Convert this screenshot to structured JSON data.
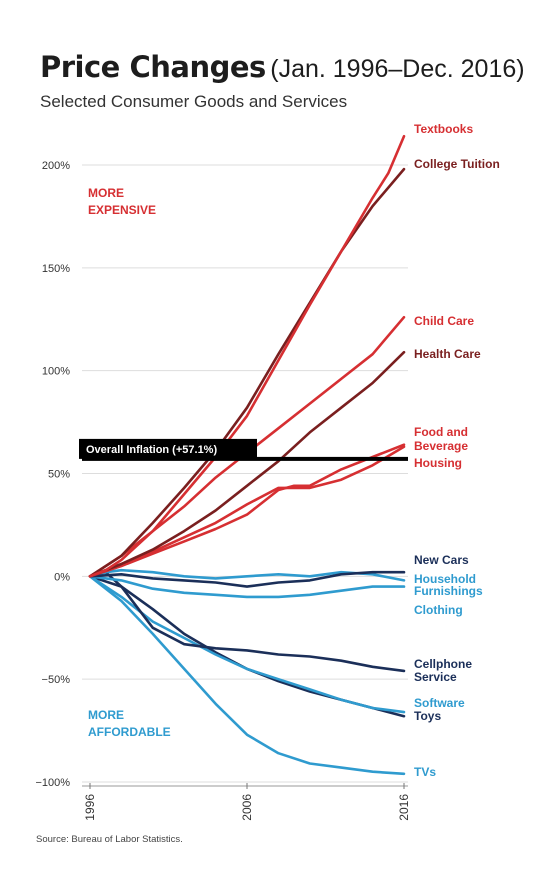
{
  "header": {
    "title": "Price Changes",
    "title_dates": "(Jan. 1996–Dec. 2016)",
    "subtitle": "Selected Consumer Goods and Services"
  },
  "footer": {
    "source": "Source: Bureau of Labor Statistics."
  },
  "colors": {
    "red": "#d62f32",
    "dark_red": "#7a1f1f",
    "blue": "#2f9bcf",
    "navy": "#1b2f59"
  },
  "chart_data": {
    "type": "line",
    "title": "Price Changes",
    "subtitle": "Selected Consumer Goods and Services",
    "xlabel": "",
    "ylabel": "",
    "xlim": [
      1996,
      2016
    ],
    "ylim": [
      -100,
      215
    ],
    "x_ticks": [
      {
        "value": 1996,
        "label": "1996"
      },
      {
        "value": 2006,
        "label": "2006"
      },
      {
        "value": 2016,
        "label": "2016"
      }
    ],
    "y_ticks": [
      {
        "value": 200,
        "label": "200%"
      },
      {
        "value": 150,
        "label": "150%"
      },
      {
        "value": 100,
        "label": "100%"
      },
      {
        "value": 50,
        "label": "50%"
      },
      {
        "value": 0,
        "label": "0%"
      },
      {
        "value": -50,
        "label": "−50%"
      },
      {
        "value": -100,
        "label": "−100%"
      }
    ],
    "grid": "horizontal",
    "legend": "direct labels at right end of lines",
    "annotations": [
      {
        "text": "MORE",
        "color": "red"
      },
      {
        "text": "EXPENSIVE",
        "color": "red"
      },
      {
        "text": "MORE",
        "color": "blue"
      },
      {
        "text": "AFFORDABLE",
        "color": "blue"
      }
    ],
    "reference": {
      "label": "Overall Inflation (+57.1%)",
      "value": 57.1
    },
    "series": [
      {
        "name": "Textbooks",
        "color": "red",
        "x": [
          1996,
          1997,
          1998,
          2000,
          2002,
          2004,
          2006,
          2008,
          2010,
          2012,
          2014,
          2015,
          2016
        ],
        "values": [
          0,
          3,
          8,
          22,
          40,
          58,
          78,
          105,
          132,
          158,
          184,
          196,
          214
        ]
      },
      {
        "name": "College Tuition",
        "color": "dark_red",
        "x": [
          1996,
          1998,
          2000,
          2002,
          2004,
          2006,
          2008,
          2010,
          2012,
          2014,
          2016
        ],
        "values": [
          0,
          10,
          26,
          43,
          61,
          82,
          108,
          133,
          158,
          180,
          198
        ]
      },
      {
        "name": "Child Care",
        "color": "red",
        "x": [
          1996,
          1998,
          2000,
          2002,
          2004,
          2006,
          2008,
          2010,
          2012,
          2014,
          2016
        ],
        "values": [
          0,
          10,
          22,
          34,
          48,
          60,
          72,
          84,
          96,
          108,
          126
        ]
      },
      {
        "name": "Health Care",
        "color": "dark_red",
        "x": [
          1996,
          1998,
          2000,
          2002,
          2004,
          2006,
          2008,
          2010,
          2012,
          2014,
          2016
        ],
        "values": [
          0,
          6,
          13,
          22,
          32,
          44,
          56,
          70,
          82,
          94,
          109
        ]
      },
      {
        "name": "Food and Beverage",
        "color": "red",
        "x": [
          1996,
          1998,
          2000,
          2002,
          2004,
          2006,
          2008,
          2009,
          2010,
          2012,
          2014,
          2016
        ],
        "values": [
          0,
          5,
          11,
          17,
          23,
          30,
          42,
          44,
          44,
          52,
          58,
          64
        ]
      },
      {
        "name": "Housing",
        "color": "red",
        "x": [
          1996,
          1998,
          2000,
          2002,
          2004,
          2006,
          2008,
          2010,
          2012,
          2014,
          2016
        ],
        "values": [
          0,
          6,
          12,
          19,
          26,
          35,
          43,
          43,
          47,
          54,
          63
        ]
      },
      {
        "name": "New Cars",
        "color": "navy",
        "x": [
          1996,
          1998,
          2000,
          2002,
          2004,
          2006,
          2008,
          2010,
          2012,
          2014,
          2016
        ],
        "values": [
          0,
          1,
          -1,
          -2,
          -3,
          -5,
          -3,
          -2,
          1,
          2,
          2
        ]
      },
      {
        "name": "Household Furnishings",
        "color": "blue",
        "x": [
          1996,
          1997,
          1998,
          2000,
          2002,
          2004,
          2006,
          2008,
          2010,
          2012,
          2014,
          2016
        ],
        "values": [
          0,
          2,
          3,
          2,
          0,
          -1,
          0,
          1,
          0,
          2,
          1,
          -2
        ]
      },
      {
        "name": "Clothing",
        "color": "blue",
        "x": [
          1996,
          1998,
          2000,
          2002,
          2004,
          2006,
          2008,
          2010,
          2012,
          2014,
          2016
        ],
        "values": [
          0,
          -2,
          -6,
          -8,
          -9,
          -10,
          -10,
          -9,
          -7,
          -5,
          -5
        ]
      },
      {
        "name": "Cellphone Service",
        "color": "navy",
        "x": [
          1996,
          1997,
          1998,
          2000,
          2002,
          2004,
          2006,
          2008,
          2010,
          2012,
          2014,
          2016
        ],
        "values": [
          0,
          2,
          -5,
          -25,
          -33,
          -35,
          -36,
          -38,
          -39,
          -41,
          -44,
          -46
        ]
      },
      {
        "name": "Software",
        "color": "blue",
        "x": [
          1996,
          1998,
          2000,
          2002,
          2004,
          2006,
          2008,
          2010,
          2012,
          2014,
          2016
        ],
        "values": [
          0,
          -10,
          -22,
          -30,
          -38,
          -45,
          -50,
          -55,
          -60,
          -64,
          -66
        ]
      },
      {
        "name": "Toys",
        "color": "navy",
        "x": [
          1996,
          1998,
          2000,
          2002,
          2004,
          2006,
          2008,
          2010,
          2012,
          2014,
          2016
        ],
        "values": [
          0,
          -5,
          -16,
          -28,
          -37,
          -45,
          -51,
          -56,
          -60,
          -64,
          -68
        ]
      },
      {
        "name": "TVs",
        "color": "blue",
        "x": [
          1996,
          1998,
          2000,
          2002,
          2004,
          2006,
          2008,
          2010,
          2012,
          2014,
          2016
        ],
        "values": [
          0,
          -12,
          -28,
          -45,
          -62,
          -77,
          -86,
          -91,
          -93,
          -95,
          -96
        ]
      }
    ]
  }
}
